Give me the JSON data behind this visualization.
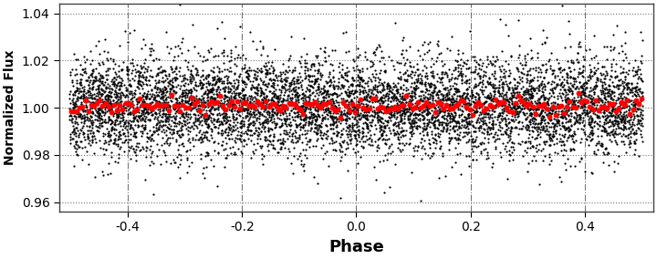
{
  "n_observations": 7498,
  "phase_min": -0.502,
  "phase_max": 0.502,
  "flux_mean": 1.0,
  "flux_scatter": 0.01,
  "xlim": [
    -0.52,
    0.52
  ],
  "ylim": [
    0.956,
    1.044
  ],
  "yticks": [
    0.96,
    0.98,
    1.0,
    1.02,
    1.04
  ],
  "xticks": [
    -0.4,
    -0.2,
    0.0,
    0.2,
    0.4
  ],
  "xlabel": "Phase",
  "ylabel": "Normalized Flux",
  "scatter_color": "black",
  "scatter_size": 2.5,
  "scatter_alpha": 1.0,
  "bin_color": "red",
  "bin_size": 18,
  "n_bins": 200,
  "grid_linestyle_x": "-.",
  "grid_linestyle_y": ":",
  "grid_color": "#555555",
  "grid_alpha": 0.8,
  "background_color": "white",
  "xlabel_fontsize": 13,
  "ylabel_fontsize": 10,
  "tick_labelsize": 10,
  "seed": 42
}
